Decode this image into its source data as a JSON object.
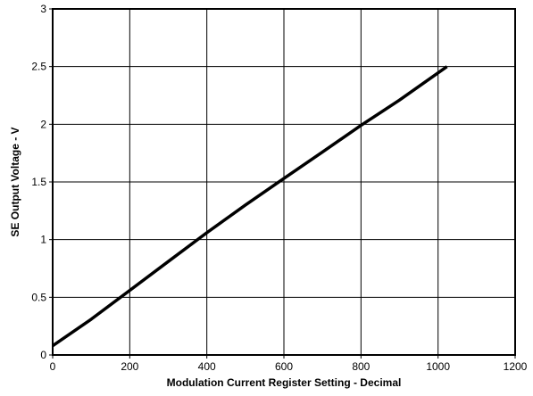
{
  "chart_data": {
    "type": "line",
    "xlabel": "Modulation Current Register Setting - Decimal",
    "ylabel": "SE Output Voltage - V",
    "xlim": [
      0,
      1200
    ],
    "ylim": [
      0,
      3
    ],
    "xticks": [
      0,
      200,
      400,
      600,
      800,
      1000,
      1200
    ],
    "yticks": [
      0,
      0.5,
      1,
      1.5,
      2,
      2.5,
      3
    ],
    "xtick_labels": [
      "0",
      "200",
      "400",
      "600",
      "800",
      "1000",
      "1200"
    ],
    "ytick_labels": [
      "0",
      "0.5",
      "1",
      "1.5",
      "2",
      "2.5",
      "3"
    ],
    "grid": true,
    "series": [
      {
        "color": "#000000",
        "x": [
          0,
          100,
          200,
          300,
          400,
          500,
          600,
          700,
          800,
          900,
          1023
        ],
        "y": [
          0.08,
          0.31,
          0.56,
          0.81,
          1.06,
          1.3,
          1.53,
          1.76,
          1.99,
          2.21,
          2.5
        ]
      }
    ]
  }
}
